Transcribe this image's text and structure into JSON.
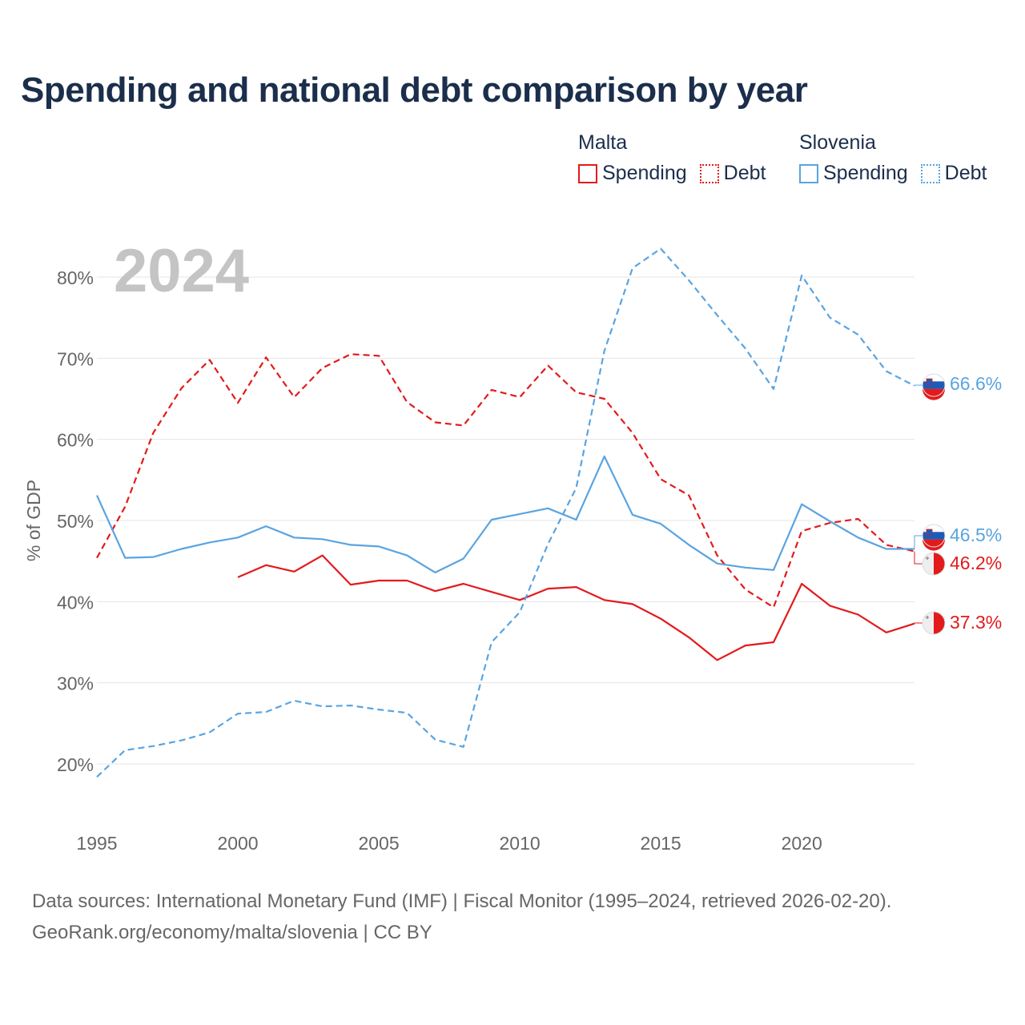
{
  "title": "Spending and national debt comparison by year",
  "legend": {
    "malta": {
      "name": "Malta",
      "spending": "Spending",
      "debt": "Debt"
    },
    "slovenia": {
      "name": "Slovenia",
      "spending": "Spending",
      "debt": "Debt"
    }
  },
  "colors": {
    "malta": "#e31a1c",
    "slovenia": "#5aa4e0",
    "title": "#1b2e4b",
    "axis_text": "#666666",
    "grid": "#e6e6e6",
    "year_watermark": "#c4c4c4"
  },
  "year_watermark": "2024",
  "source": {
    "line1": "Data sources: International Monetary Fund (IMF) | Fiscal Monitor (1995–2024, retrieved 2026-02-20).",
    "line2": "GeoRank.org/economy/malta/slovenia | CC BY"
  },
  "chart_data": {
    "type": "line",
    "title": "Spending and national debt comparison by year",
    "xlabel": "",
    "ylabel": "% of GDP",
    "xlim": [
      1995,
      2024
    ],
    "ylim": [
      15,
      85
    ],
    "x_ticks": [
      1995,
      2000,
      2005,
      2010,
      2015,
      2020
    ],
    "y_ticks": [
      20,
      30,
      40,
      50,
      60,
      70,
      80
    ],
    "y_tick_labels": [
      "20%",
      "30%",
      "40%",
      "50%",
      "60%",
      "70%",
      "80%"
    ],
    "grid": true,
    "legend_position": "top-right",
    "series": [
      {
        "name": "Malta Spending",
        "country": "malta",
        "style": "solid",
        "x": [
          2000,
          2001,
          2002,
          2003,
          2004,
          2005,
          2006,
          2007,
          2008,
          2009,
          2010,
          2011,
          2012,
          2013,
          2014,
          2015,
          2016,
          2017,
          2018,
          2019,
          2020,
          2021,
          2022,
          2023,
          2024
        ],
        "values": [
          43.0,
          44.5,
          43.7,
          45.7,
          42.1,
          42.6,
          42.6,
          41.3,
          42.2,
          41.2,
          40.2,
          41.6,
          41.8,
          40.2,
          39.7,
          37.9,
          35.6,
          32.8,
          34.6,
          35.0,
          42.2,
          39.5,
          38.4,
          36.2,
          37.3
        ],
        "end_label": "37.3%"
      },
      {
        "name": "Malta Debt",
        "country": "malta",
        "style": "dashed",
        "x": [
          1995,
          1996,
          1997,
          1998,
          1999,
          2000,
          2001,
          2002,
          2003,
          2004,
          2005,
          2006,
          2007,
          2008,
          2009,
          2010,
          2011,
          2012,
          2013,
          2014,
          2015,
          2016,
          2017,
          2018,
          2019,
          2020,
          2021,
          2022,
          2023,
          2024
        ],
        "values": [
          45.4,
          51.7,
          60.8,
          66.3,
          69.8,
          64.5,
          70.1,
          65.2,
          68.8,
          70.5,
          70.3,
          64.6,
          62.1,
          61.7,
          66.1,
          65.2,
          69.1,
          65.8,
          65.0,
          60.8,
          55.1,
          53.1,
          45.7,
          41.5,
          39.3,
          48.7,
          49.7,
          50.2,
          47.0,
          46.2
        ],
        "end_label": "46.2%"
      },
      {
        "name": "Slovenia Spending",
        "country": "slovenia",
        "style": "solid",
        "x": [
          1995,
          1996,
          1997,
          1998,
          1999,
          2000,
          2001,
          2002,
          2003,
          2004,
          2005,
          2006,
          2007,
          2008,
          2009,
          2010,
          2011,
          2012,
          2013,
          2014,
          2015,
          2016,
          2017,
          2018,
          2019,
          2020,
          2021,
          2022,
          2023,
          2024
        ],
        "values": [
          53.1,
          45.4,
          45.5,
          46.5,
          47.3,
          47.9,
          49.3,
          47.9,
          47.7,
          47.0,
          46.8,
          45.7,
          43.6,
          45.3,
          50.1,
          50.8,
          51.5,
          50.1,
          57.9,
          50.7,
          49.6,
          47.0,
          44.7,
          44.2,
          43.9,
          52.0,
          49.9,
          47.9,
          46.5,
          46.5
        ],
        "end_label": "46.5%"
      },
      {
        "name": "Slovenia Debt",
        "country": "slovenia",
        "style": "dashed",
        "x": [
          1995,
          1996,
          1997,
          1998,
          1999,
          2000,
          2001,
          2002,
          2003,
          2004,
          2005,
          2006,
          2007,
          2008,
          2009,
          2010,
          2011,
          2012,
          2013,
          2014,
          2015,
          2016,
          2017,
          2018,
          2019,
          2020,
          2021,
          2022,
          2023,
          2024
        ],
        "values": [
          18.4,
          21.7,
          22.2,
          22.9,
          23.9,
          26.2,
          26.4,
          27.8,
          27.1,
          27.2,
          26.7,
          26.3,
          23.0,
          22.1,
          35.0,
          38.7,
          47.1,
          54.0,
          70.9,
          81.1,
          83.5,
          79.6,
          75.3,
          71.2,
          66.2,
          80.2,
          75.0,
          72.9,
          68.4,
          66.6
        ],
        "end_label": "66.6%"
      }
    ]
  }
}
